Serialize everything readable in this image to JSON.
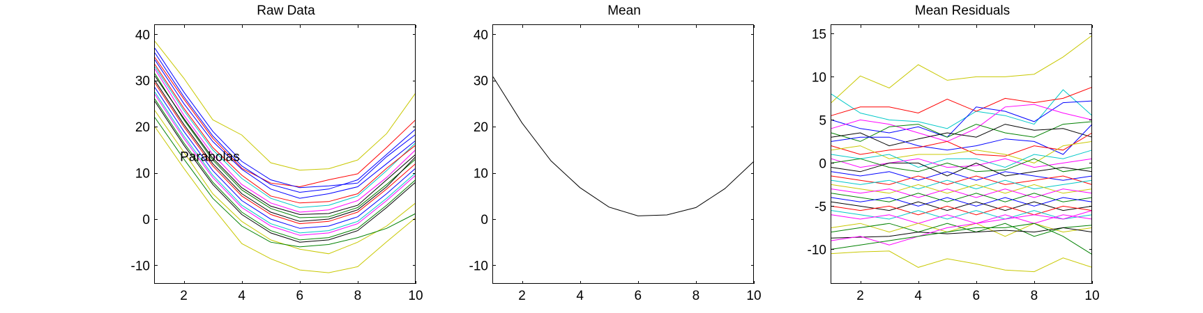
{
  "chart_data": [
    {
      "type": "line",
      "title": "Raw Data",
      "xlabel": "",
      "ylabel": "",
      "xlim": [
        1,
        10
      ],
      "ylim": [
        -14,
        42
      ],
      "xticks": [
        2,
        4,
        6,
        8,
        10
      ],
      "yticks": [
        -10,
        0,
        10,
        20,
        30,
        40
      ],
      "grid": false,
      "legend": "none",
      "annotations": [
        {
          "text": "Parabolas",
          "x": 2.9,
          "y": 13.5
        }
      ],
      "x": [
        1,
        2,
        3,
        4,
        5,
        6,
        7,
        8,
        9,
        10
      ],
      "series": [
        {
          "color": "#c8c800",
          "values": [
            38.5,
            30.5,
            21.5,
            18.2,
            12.2,
            10.6,
            10.9,
            12.8,
            18.5,
            27.3
          ]
        },
        {
          "color": "#c8c800",
          "values": [
            20.0,
            11.0,
            2.5,
            -5.3,
            -8.6,
            -11.0,
            -11.6,
            -10.3,
            -4.9,
            0.3
          ]
        },
        {
          "color": "#ff0000",
          "values": [
            35.0,
            26.0,
            17.5,
            11.0,
            7.8,
            7.0,
            8.5,
            9.8,
            15.5,
            21.5
          ]
        },
        {
          "color": "#0000ff",
          "values": [
            37.0,
            27.5,
            19.0,
            12.5,
            8.5,
            6.8,
            7.2,
            7.8,
            13.5,
            18.3
          ]
        },
        {
          "color": "#0000ff",
          "values": [
            34.5,
            25.0,
            16.8,
            10.8,
            6.5,
            4.5,
            5.5,
            7.0,
            12.0,
            17.0
          ]
        },
        {
          "color": "#00c8c8",
          "values": [
            33.0,
            23.5,
            15.0,
            8.8,
            4.5,
            2.5,
            3.0,
            5.0,
            10.5,
            16.5
          ]
        },
        {
          "color": "#ff00ff",
          "values": [
            32.5,
            22.5,
            14.0,
            7.5,
            3.5,
            1.5,
            2.0,
            4.0,
            9.0,
            15.0
          ]
        },
        {
          "color": "#008000",
          "values": [
            31.5,
            21.5,
            12.8,
            6.3,
            2.3,
            0.3,
            0.5,
            2.5,
            7.5,
            13.0
          ]
        },
        {
          "color": "#000000",
          "values": [
            30.0,
            20.5,
            12.0,
            5.5,
            1.5,
            -0.5,
            0.0,
            2.0,
            7.0,
            13.5
          ]
        },
        {
          "color": "#ff0000",
          "values": [
            29.5,
            20.0,
            11.5,
            5.0,
            1.0,
            -1.0,
            -0.5,
            1.5,
            6.5,
            12.0
          ]
        },
        {
          "color": "#0000ff",
          "values": [
            28.5,
            19.0,
            10.5,
            4.0,
            0.0,
            -2.0,
            -1.5,
            0.5,
            5.5,
            11.0
          ]
        },
        {
          "color": "#00c8c8",
          "values": [
            27.5,
            18.0,
            9.5,
            3.0,
            -1.0,
            -3.0,
            -2.5,
            -0.5,
            4.5,
            10.0
          ]
        },
        {
          "color": "#ff00ff",
          "values": [
            27.0,
            17.5,
            9.0,
            2.5,
            -1.5,
            -3.5,
            -3.0,
            -1.0,
            4.0,
            9.5
          ]
        },
        {
          "color": "#008000",
          "values": [
            26.0,
            16.5,
            8.0,
            1.5,
            -2.5,
            -4.5,
            -4.0,
            -2.0,
            3.0,
            8.5
          ]
        },
        {
          "color": "#000000",
          "values": [
            25.5,
            16.0,
            7.5,
            1.0,
            -3.0,
            -5.0,
            -4.5,
            -2.5,
            2.5,
            8.0
          ]
        },
        {
          "color": "#c8c800",
          "values": [
            23.5,
            14.5,
            5.5,
            -0.5,
            -4.5,
            -6.5,
            -7.5,
            -5.0,
            -1.5,
            3.5
          ]
        },
        {
          "color": "#008000",
          "values": [
            22.0,
            13.0,
            4.5,
            -1.5,
            -5.0,
            -6.0,
            -5.5,
            -4.0,
            -2.0,
            1.2
          ]
        },
        {
          "color": "#0000ff",
          "values": [
            36.0,
            26.5,
            18.0,
            11.5,
            7.5,
            5.8,
            6.5,
            8.5,
            14.0,
            19.5
          ]
        },
        {
          "color": "#ff0000",
          "values": [
            33.5,
            24.0,
            15.5,
            9.5,
            5.0,
            3.5,
            3.8,
            5.5,
            11.0,
            16.0
          ]
        },
        {
          "color": "#000000",
          "values": [
            31.0,
            21.8,
            13.2,
            6.8,
            2.8,
            1.0,
            1.2,
            3.0,
            8.5,
            14.0
          ]
        }
      ]
    },
    {
      "type": "line",
      "title": "Mean",
      "xlabel": "",
      "ylabel": "",
      "xlim": [
        1,
        10
      ],
      "ylim": [
        -14,
        42
      ],
      "xticks": [
        2,
        4,
        6,
        8,
        10
      ],
      "yticks": [
        -10,
        0,
        10,
        20,
        30,
        40
      ],
      "grid": false,
      "legend": "none",
      "x": [
        1,
        2,
        3,
        4,
        5,
        6,
        7,
        8,
        9,
        10
      ],
      "series": [
        {
          "color": "#000000",
          "values": [
            30.8,
            20.8,
            12.6,
            6.8,
            2.6,
            0.7,
            0.9,
            2.5,
            6.6,
            12.5
          ]
        }
      ]
    },
    {
      "type": "line",
      "title": "Mean Residuals",
      "xlabel": "",
      "ylabel": "",
      "xlim": [
        1,
        10
      ],
      "ylim": [
        -14,
        16
      ],
      "xticks": [
        2,
        4,
        6,
        8,
        10
      ],
      "yticks": [
        -10,
        -5,
        0,
        5,
        10,
        15
      ],
      "grid": false,
      "legend": "none",
      "x": [
        1,
        2,
        3,
        4,
        5,
        6,
        7,
        8,
        9,
        10
      ],
      "series": [
        {
          "color": "#c8c800",
          "values": [
            7.0,
            10.1,
            8.7,
            11.4,
            9.6,
            10.0,
            10.0,
            10.3,
            12.3,
            14.8
          ]
        },
        {
          "color": "#c8c800",
          "values": [
            -10.5,
            -10.3,
            -10.2,
            -12.1,
            -11.1,
            -11.7,
            -12.4,
            -12.6,
            -11.0,
            -12.1
          ]
        },
        {
          "color": "#00c8c8",
          "values": [
            8.0,
            5.8,
            5.0,
            4.8,
            4.0,
            6.0,
            5.5,
            4.5,
            8.5,
            5.5
          ]
        },
        {
          "color": "#ff0000",
          "values": [
            5.5,
            6.5,
            6.5,
            5.8,
            7.4,
            6.0,
            7.5,
            7.0,
            7.5,
            8.8
          ]
        },
        {
          "color": "#0000ff",
          "values": [
            5.0,
            4.0,
            3.5,
            4.2,
            3.0,
            6.5,
            6.0,
            4.8,
            7.0,
            7.2
          ]
        },
        {
          "color": "#ff00ff",
          "values": [
            4.0,
            5.0,
            4.5,
            3.5,
            2.5,
            4.0,
            6.5,
            6.8,
            5.8,
            5.0
          ]
        },
        {
          "color": "#008000",
          "values": [
            3.5,
            2.5,
            4.2,
            4.5,
            3.0,
            4.5,
            3.5,
            3.0,
            4.5,
            4.8
          ]
        },
        {
          "color": "#000000",
          "values": [
            3.0,
            3.5,
            2.0,
            2.8,
            3.5,
            3.0,
            4.5,
            3.8,
            4.0,
            3.0
          ]
        },
        {
          "color": "#0000ff",
          "values": [
            2.5,
            3.0,
            3.0,
            2.0,
            1.5,
            2.0,
            2.8,
            2.5,
            1.0,
            4.5
          ]
        },
        {
          "color": "#ff0000",
          "values": [
            2.0,
            1.0,
            1.5,
            1.8,
            2.5,
            1.0,
            0.8,
            2.0,
            1.5,
            3.5
          ]
        },
        {
          "color": "#c8c800",
          "values": [
            1.5,
            2.0,
            0.5,
            1.0,
            1.0,
            1.5,
            1.0,
            0.0,
            2.0,
            2.5
          ]
        },
        {
          "color": "#00c8c8",
          "values": [
            1.0,
            0.5,
            1.0,
            -0.5,
            0.5,
            0.5,
            -0.5,
            1.0,
            0.5,
            1.5
          ]
        },
        {
          "color": "#ff00ff",
          "values": [
            0.5,
            -0.5,
            0.0,
            0.5,
            -0.5,
            -0.3,
            0.5,
            -0.5,
            0.0,
            0.5
          ]
        },
        {
          "color": "#008000",
          "values": [
            0.0,
            0.5,
            -0.5,
            -1.0,
            0.0,
            -1.0,
            -0.8,
            0.5,
            -1.0,
            -0.5
          ]
        },
        {
          "color": "#000000",
          "values": [
            -0.5,
            -1.0,
            0.0,
            0.0,
            -1.5,
            0.0,
            -1.5,
            -1.0,
            -0.5,
            -1.0
          ]
        },
        {
          "color": "#0000ff",
          "values": [
            -1.0,
            -1.5,
            -1.0,
            -2.0,
            -1.0,
            -2.0,
            -1.0,
            -1.5,
            -2.0,
            -1.5
          ]
        },
        {
          "color": "#ff0000",
          "values": [
            -1.5,
            -2.0,
            -2.5,
            -1.5,
            -2.5,
            -1.5,
            -2.5,
            -2.0,
            -1.5,
            -2.5
          ]
        },
        {
          "color": "#00c8c8",
          "values": [
            -2.0,
            -2.5,
            -2.0,
            -3.0,
            -2.0,
            -3.0,
            -2.0,
            -3.0,
            -2.5,
            -2.0
          ]
        },
        {
          "color": "#c8c800",
          "values": [
            -2.5,
            -3.0,
            -3.5,
            -2.5,
            -3.5,
            -2.5,
            -3.5,
            -2.5,
            -3.5,
            -3.0
          ]
        },
        {
          "color": "#ff00ff",
          "values": [
            -3.0,
            -3.5,
            -3.0,
            -4.0,
            -3.0,
            -4.0,
            -3.0,
            -4.0,
            -3.0,
            -3.5
          ]
        },
        {
          "color": "#008000",
          "values": [
            -3.5,
            -4.0,
            -4.5,
            -3.5,
            -4.5,
            -3.5,
            -4.5,
            -3.5,
            -4.5,
            -4.0
          ]
        },
        {
          "color": "#0000ff",
          "values": [
            -4.0,
            -4.5,
            -4.0,
            -5.0,
            -4.0,
            -5.0,
            -4.0,
            -5.0,
            -4.0,
            -4.5
          ]
        },
        {
          "color": "#000000",
          "values": [
            -4.5,
            -5.0,
            -5.5,
            -4.5,
            -5.5,
            -4.5,
            -5.5,
            -4.5,
            -5.5,
            -5.0
          ]
        },
        {
          "color": "#ff0000",
          "values": [
            -5.0,
            -5.5,
            -5.0,
            -6.0,
            -5.0,
            -6.0,
            -5.0,
            -6.0,
            -5.0,
            -5.5
          ]
        },
        {
          "color": "#00c8c8",
          "values": [
            -5.5,
            -6.0,
            -6.5,
            -5.5,
            -6.5,
            -5.5,
            -6.5,
            -5.5,
            -6.5,
            -6.0
          ]
        },
        {
          "color": "#ff00ff",
          "values": [
            -6.0,
            -6.5,
            -6.0,
            -7.0,
            -6.0,
            -7.0,
            -6.0,
            -7.0,
            -6.0,
            -6.5
          ]
        },
        {
          "color": "#c8c800",
          "values": [
            -7.5,
            -7.0,
            -8.0,
            -7.0,
            -8.0,
            -7.0,
            -8.5,
            -7.0,
            -8.0,
            -7.5
          ]
        },
        {
          "color": "#008000",
          "values": [
            -8.0,
            -7.5,
            -7.0,
            -8.0,
            -7.0,
            -8.0,
            -7.0,
            -8.5,
            -7.5,
            -7.2
          ]
        },
        {
          "color": "#000000",
          "values": [
            -8.7,
            -8.6,
            -8.5,
            -8.0,
            -8.2,
            -8.0,
            -7.8,
            -8.0,
            -7.5,
            -8.0
          ]
        },
        {
          "color": "#ff00ff",
          "values": [
            -9.0,
            -8.5,
            -9.5,
            -8.5,
            -7.5,
            -7.0,
            -6.5,
            -6.0,
            -6.5,
            -5.5
          ]
        },
        {
          "color": "#008000",
          "values": [
            -10.0,
            -9.5,
            -9.0,
            -8.5,
            -8.0,
            -7.5,
            -7.5,
            -7.0,
            -8.5,
            -10.6
          ]
        }
      ]
    }
  ]
}
